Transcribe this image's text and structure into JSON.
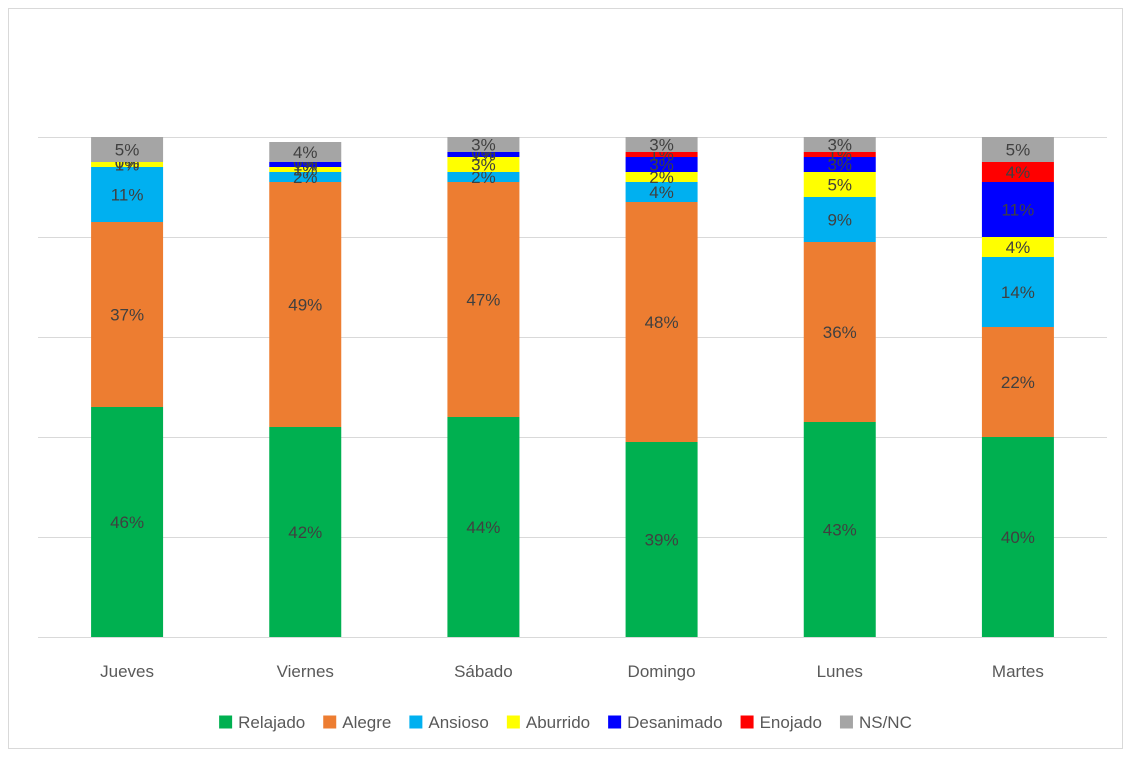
{
  "chart_data": {
    "type": "bar",
    "stacked": true,
    "title": "",
    "xlabel": "",
    "ylabel": "",
    "ylim": [
      0,
      1.0
    ],
    "gridlines": true,
    "legend_position": "bottom",
    "categories": [
      "Jueves",
      "Viernes",
      "Sábado",
      "Domingo",
      "Lunes",
      "Martes"
    ],
    "series": [
      {
        "name": "Relajado",
        "color": "#00B050",
        "values": [
          0.46,
          0.42,
          0.44,
          0.39,
          0.43,
          0.4
        ],
        "labels": [
          "46%",
          "42%",
          "44%",
          "39%",
          "43%",
          "40%"
        ]
      },
      {
        "name": "Alegre",
        "color": "#ED7D31",
        "values": [
          0.37,
          0.49,
          0.47,
          0.48,
          0.36,
          0.22
        ],
        "labels": [
          "37%",
          "49%",
          "47%",
          "48%",
          "36%",
          "22%"
        ]
      },
      {
        "name": "Ansioso",
        "color": "#00B0F0",
        "values": [
          0.11,
          0.02,
          0.02,
          0.04,
          0.09,
          0.14
        ],
        "labels": [
          "11%",
          "2%",
          "2%",
          "4%",
          "9%",
          "14%"
        ]
      },
      {
        "name": "Aburrido",
        "color": "#FFFF00",
        "values": [
          0.01,
          0.01,
          0.03,
          0.02,
          0.05,
          0.04
        ],
        "labels": [
          "1%",
          "1%",
          "3%",
          "2%",
          "5%",
          "4%"
        ]
      },
      {
        "name": "Desanimado",
        "color": "#0000FF",
        "values": [
          0.0,
          0.01,
          0.01,
          0.03,
          0.03,
          0.11
        ],
        "labels": [
          "0%",
          "1%",
          "1%",
          "3%",
          "3%",
          "11%"
        ]
      },
      {
        "name": "Enojado",
        "color": "#FF0000",
        "values": [
          0.0,
          0.0,
          0.0,
          0.01,
          0.01,
          0.04
        ],
        "labels": [
          "0%",
          "0%",
          "0%",
          "1%",
          "1%",
          "4%"
        ]
      },
      {
        "name": "NS/NC",
        "color": "#A5A5A5",
        "values": [
          0.05,
          0.04,
          0.03,
          0.03,
          0.03,
          0.05
        ],
        "labels": [
          "5%",
          "4%",
          "3%",
          "3%",
          "3%",
          "5%"
        ]
      }
    ]
  }
}
